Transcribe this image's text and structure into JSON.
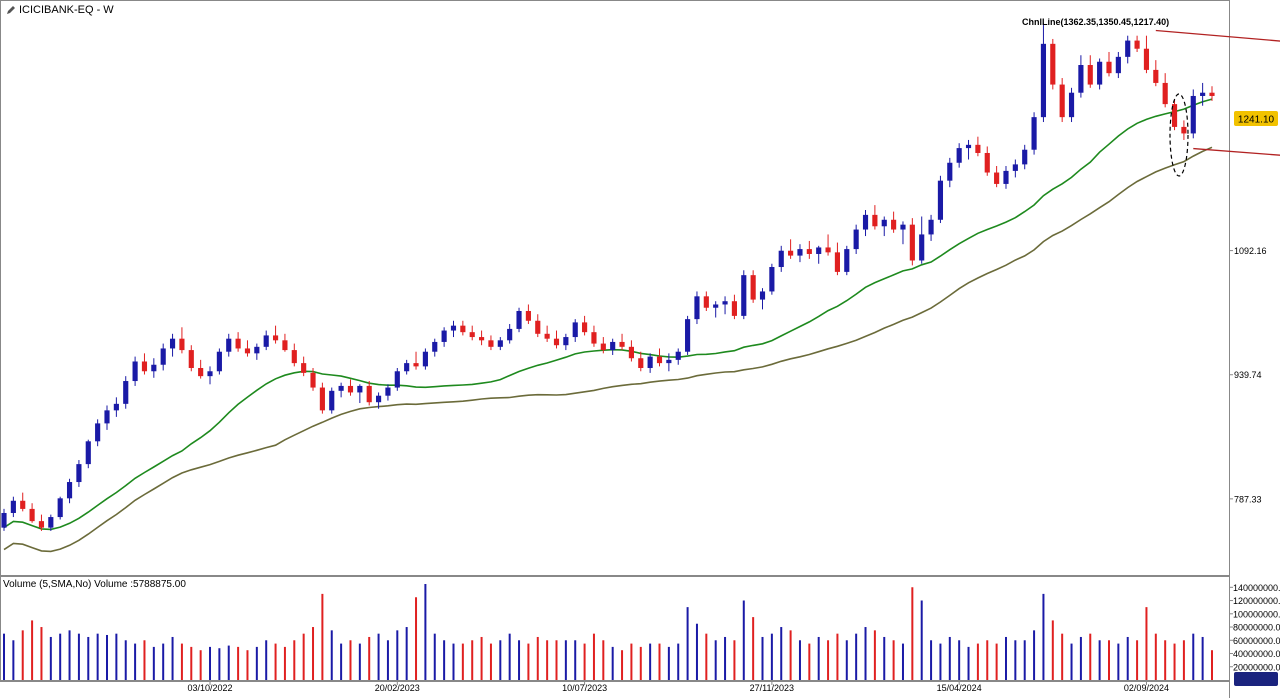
{
  "header": {
    "symbol": "ICICIBANK-EQ",
    "timeframe": "W"
  },
  "annotation": {
    "label": "ChnlLine(1362.35,1350.45,1217.40)"
  },
  "price_badge": {
    "value": "1241.10",
    "color": "#f2c200"
  },
  "volume_pane": {
    "label": "Volume (5,SMA,No) Volume :5788875.00"
  },
  "colors": {
    "up": "#1a1aa6",
    "down": "#e02020",
    "sma_fast": "#1e8a1e",
    "sma_slow": "#6b6b3a",
    "channel": "#b22222"
  },
  "chart_data": {
    "type": "candlestick",
    "price_axis": {
      "ticks": [
        "1241.10",
        "1092.16",
        "939.74",
        "787.33"
      ],
      "range": [
        700,
        1390
      ]
    },
    "volume_axis": {
      "ticks": [
        "140000000.0",
        "120000000.0",
        "100000000.0",
        "80000000.0",
        "60000000.0",
        "40000000.0",
        "20000000.0"
      ],
      "range": [
        0,
        145000000
      ]
    },
    "date_labels": [
      "03/10/2022",
      "20/02/2023",
      "10/07/2023",
      "27/11/2023",
      "15/04/2024",
      "02/09/2024"
    ],
    "date_label_index": [
      22,
      42,
      62,
      82,
      102,
      122
    ],
    "channel_lines": [
      {
        "from": [
          123,
          1362.35
        ],
        "to": [
          148,
          1338
        ]
      },
      {
        "from": [
          127,
          1217.4
        ],
        "to": [
          148,
          1199
        ]
      }
    ],
    "candles": [
      [
        752,
        775,
        748,
        770,
        70
      ],
      [
        770,
        790,
        765,
        785,
        60
      ],
      [
        785,
        795,
        772,
        775,
        75
      ],
      [
        775,
        782,
        758,
        760,
        90
      ],
      [
        760,
        768,
        748,
        752,
        80
      ],
      [
        752,
        768,
        748,
        765,
        65
      ],
      [
        765,
        790,
        762,
        788,
        70
      ],
      [
        788,
        812,
        782,
        808,
        75
      ],
      [
        808,
        835,
        802,
        830,
        70
      ],
      [
        830,
        860,
        825,
        858,
        65
      ],
      [
        858,
        885,
        852,
        880,
        70
      ],
      [
        880,
        902,
        872,
        896,
        68
      ],
      [
        896,
        912,
        888,
        904,
        70
      ],
      [
        904,
        938,
        898,
        932,
        60
      ],
      [
        932,
        962,
        926,
        956,
        55
      ],
      [
        956,
        966,
        940,
        944,
        60
      ],
      [
        944,
        960,
        936,
        952,
        50
      ],
      [
        952,
        978,
        945,
        972,
        55
      ],
      [
        972,
        990,
        962,
        984,
        65
      ],
      [
        984,
        998,
        966,
        970,
        55
      ],
      [
        970,
        976,
        944,
        948,
        50
      ],
      [
        948,
        958,
        935,
        938,
        45
      ],
      [
        938,
        950,
        928,
        944,
        50
      ],
      [
        944,
        972,
        940,
        968,
        48
      ],
      [
        968,
        990,
        962,
        984,
        52
      ],
      [
        984,
        992,
        968,
        972,
        50
      ],
      [
        972,
        982,
        962,
        966,
        45
      ],
      [
        966,
        978,
        958,
        974,
        50
      ],
      [
        974,
        994,
        970,
        988,
        60
      ],
      [
        988,
        1000,
        978,
        982,
        55
      ],
      [
        982,
        990,
        968,
        970,
        50
      ],
      [
        970,
        978,
        950,
        954,
        60
      ],
      [
        954,
        962,
        938,
        942,
        70
      ],
      [
        942,
        948,
        920,
        924,
        80
      ],
      [
        924,
        930,
        892,
        896,
        130
      ],
      [
        896,
        924,
        892,
        920,
        75
      ],
      [
        920,
        930,
        912,
        926,
        55
      ],
      [
        926,
        934,
        914,
        918,
        60
      ],
      [
        918,
        928,
        905,
        926,
        55
      ],
      [
        926,
        932,
        902,
        906,
        65
      ],
      [
        906,
        918,
        898,
        914,
        70
      ],
      [
        914,
        928,
        908,
        924,
        60
      ],
      [
        924,
        948,
        920,
        944,
        75
      ],
      [
        944,
        958,
        940,
        954,
        80
      ],
      [
        954,
        968,
        946,
        950,
        125
      ],
      [
        950,
        972,
        946,
        968,
        145
      ],
      [
        968,
        984,
        962,
        980,
        70
      ],
      [
        980,
        998,
        974,
        994,
        60
      ],
      [
        994,
        1006,
        986,
        1000,
        55
      ],
      [
        1000,
        1006,
        988,
        992,
        55
      ],
      [
        992,
        1000,
        982,
        986,
        60
      ],
      [
        986,
        994,
        976,
        982,
        65
      ],
      [
        982,
        988,
        970,
        974,
        55
      ],
      [
        974,
        986,
        970,
        982,
        60
      ],
      [
        982,
        1002,
        978,
        996,
        70
      ],
      [
        996,
        1022,
        992,
        1018,
        60
      ],
      [
        1018,
        1026,
        1002,
        1006,
        55
      ],
      [
        1006,
        1014,
        986,
        990,
        65
      ],
      [
        990,
        1000,
        980,
        984,
        60
      ],
      [
        984,
        994,
        972,
        976,
        60
      ],
      [
        976,
        990,
        970,
        986,
        60
      ],
      [
        986,
        1008,
        980,
        1004,
        60
      ],
      [
        1004,
        1012,
        988,
        992,
        55
      ],
      [
        992,
        1000,
        974,
        978,
        70
      ],
      [
        978,
        986,
        966,
        970,
        60
      ],
      [
        970,
        984,
        964,
        980,
        50
      ],
      [
        980,
        990,
        970,
        974,
        45
      ],
      [
        974,
        982,
        956,
        960,
        55
      ],
      [
        960,
        968,
        944,
        948,
        50
      ],
      [
        948,
        966,
        942,
        962,
        55
      ],
      [
        962,
        972,
        950,
        954,
        55
      ],
      [
        954,
        966,
        944,
        958,
        50
      ],
      [
        958,
        972,
        952,
        968,
        55
      ],
      [
        968,
        1012,
        964,
        1008,
        110
      ],
      [
        1008,
        1042,
        1002,
        1036,
        85
      ],
      [
        1036,
        1042,
        1018,
        1022,
        70
      ],
      [
        1022,
        1030,
        1010,
        1026,
        60
      ],
      [
        1026,
        1036,
        1014,
        1030,
        65
      ],
      [
        1030,
        1038,
        1008,
        1012,
        60
      ],
      [
        1012,
        1068,
        1008,
        1062,
        120
      ],
      [
        1062,
        1068,
        1028,
        1032,
        95
      ],
      [
        1032,
        1046,
        1020,
        1042,
        65
      ],
      [
        1042,
        1076,
        1038,
        1072,
        70
      ],
      [
        1072,
        1098,
        1066,
        1092,
        80
      ],
      [
        1092,
        1106,
        1082,
        1086,
        75
      ],
      [
        1086,
        1100,
        1078,
        1094,
        60
      ],
      [
        1094,
        1104,
        1082,
        1088,
        55
      ],
      [
        1088,
        1098,
        1076,
        1096,
        65
      ],
      [
        1096,
        1112,
        1086,
        1090,
        60
      ],
      [
        1090,
        1102,
        1062,
        1066,
        70
      ],
      [
        1066,
        1098,
        1062,
        1094,
        60
      ],
      [
        1094,
        1124,
        1088,
        1118,
        70
      ],
      [
        1118,
        1142,
        1110,
        1136,
        80
      ],
      [
        1136,
        1148,
        1118,
        1122,
        75
      ],
      [
        1122,
        1134,
        1110,
        1130,
        65
      ],
      [
        1130,
        1140,
        1114,
        1118,
        60
      ],
      [
        1118,
        1128,
        1100,
        1124,
        55
      ],
      [
        1124,
        1132,
        1074,
        1080,
        140
      ],
      [
        1080,
        1134,
        1076,
        1112,
        120
      ],
      [
        1112,
        1136,
        1104,
        1130,
        60
      ],
      [
        1130,
        1184,
        1126,
        1178,
        55
      ],
      [
        1178,
        1206,
        1170,
        1200,
        65
      ],
      [
        1200,
        1224,
        1194,
        1218,
        60
      ],
      [
        1218,
        1228,
        1204,
        1222,
        50
      ],
      [
        1222,
        1232,
        1208,
        1212,
        55
      ],
      [
        1212,
        1220,
        1184,
        1188,
        60
      ],
      [
        1188,
        1196,
        1170,
        1174,
        55
      ],
      [
        1174,
        1196,
        1168,
        1190,
        65
      ],
      [
        1190,
        1204,
        1182,
        1198,
        60
      ],
      [
        1198,
        1222,
        1192,
        1216,
        60
      ],
      [
        1216,
        1262,
        1210,
        1256,
        75
      ],
      [
        1256,
        1372,
        1250,
        1346,
        130
      ],
      [
        1346,
        1352,
        1290,
        1296,
        90
      ],
      [
        1296,
        1304,
        1250,
        1256,
        70
      ],
      [
        1256,
        1292,
        1250,
        1286,
        55
      ],
      [
        1286,
        1332,
        1280,
        1320,
        65
      ],
      [
        1320,
        1332,
        1292,
        1296,
        70
      ],
      [
        1296,
        1328,
        1290,
        1324,
        60
      ],
      [
        1324,
        1336,
        1306,
        1310,
        60
      ],
      [
        1310,
        1336,
        1304,
        1330,
        55
      ],
      [
        1330,
        1356,
        1322,
        1350,
        65
      ],
      [
        1350,
        1356,
        1336,
        1340,
        60
      ],
      [
        1340,
        1356,
        1310,
        1314,
        110
      ],
      [
        1314,
        1326,
        1294,
        1298,
        70
      ],
      [
        1298,
        1310,
        1268,
        1272,
        60
      ],
      [
        1272,
        1278,
        1240,
        1244,
        55
      ],
      [
        1244,
        1252,
        1228,
        1236,
        60
      ],
      [
        1236,
        1290,
        1230,
        1282,
        70
      ],
      [
        1282,
        1298,
        1270,
        1286,
        65
      ],
      [
        1286,
        1294,
        1276,
        1282,
        45
      ]
    ]
  }
}
